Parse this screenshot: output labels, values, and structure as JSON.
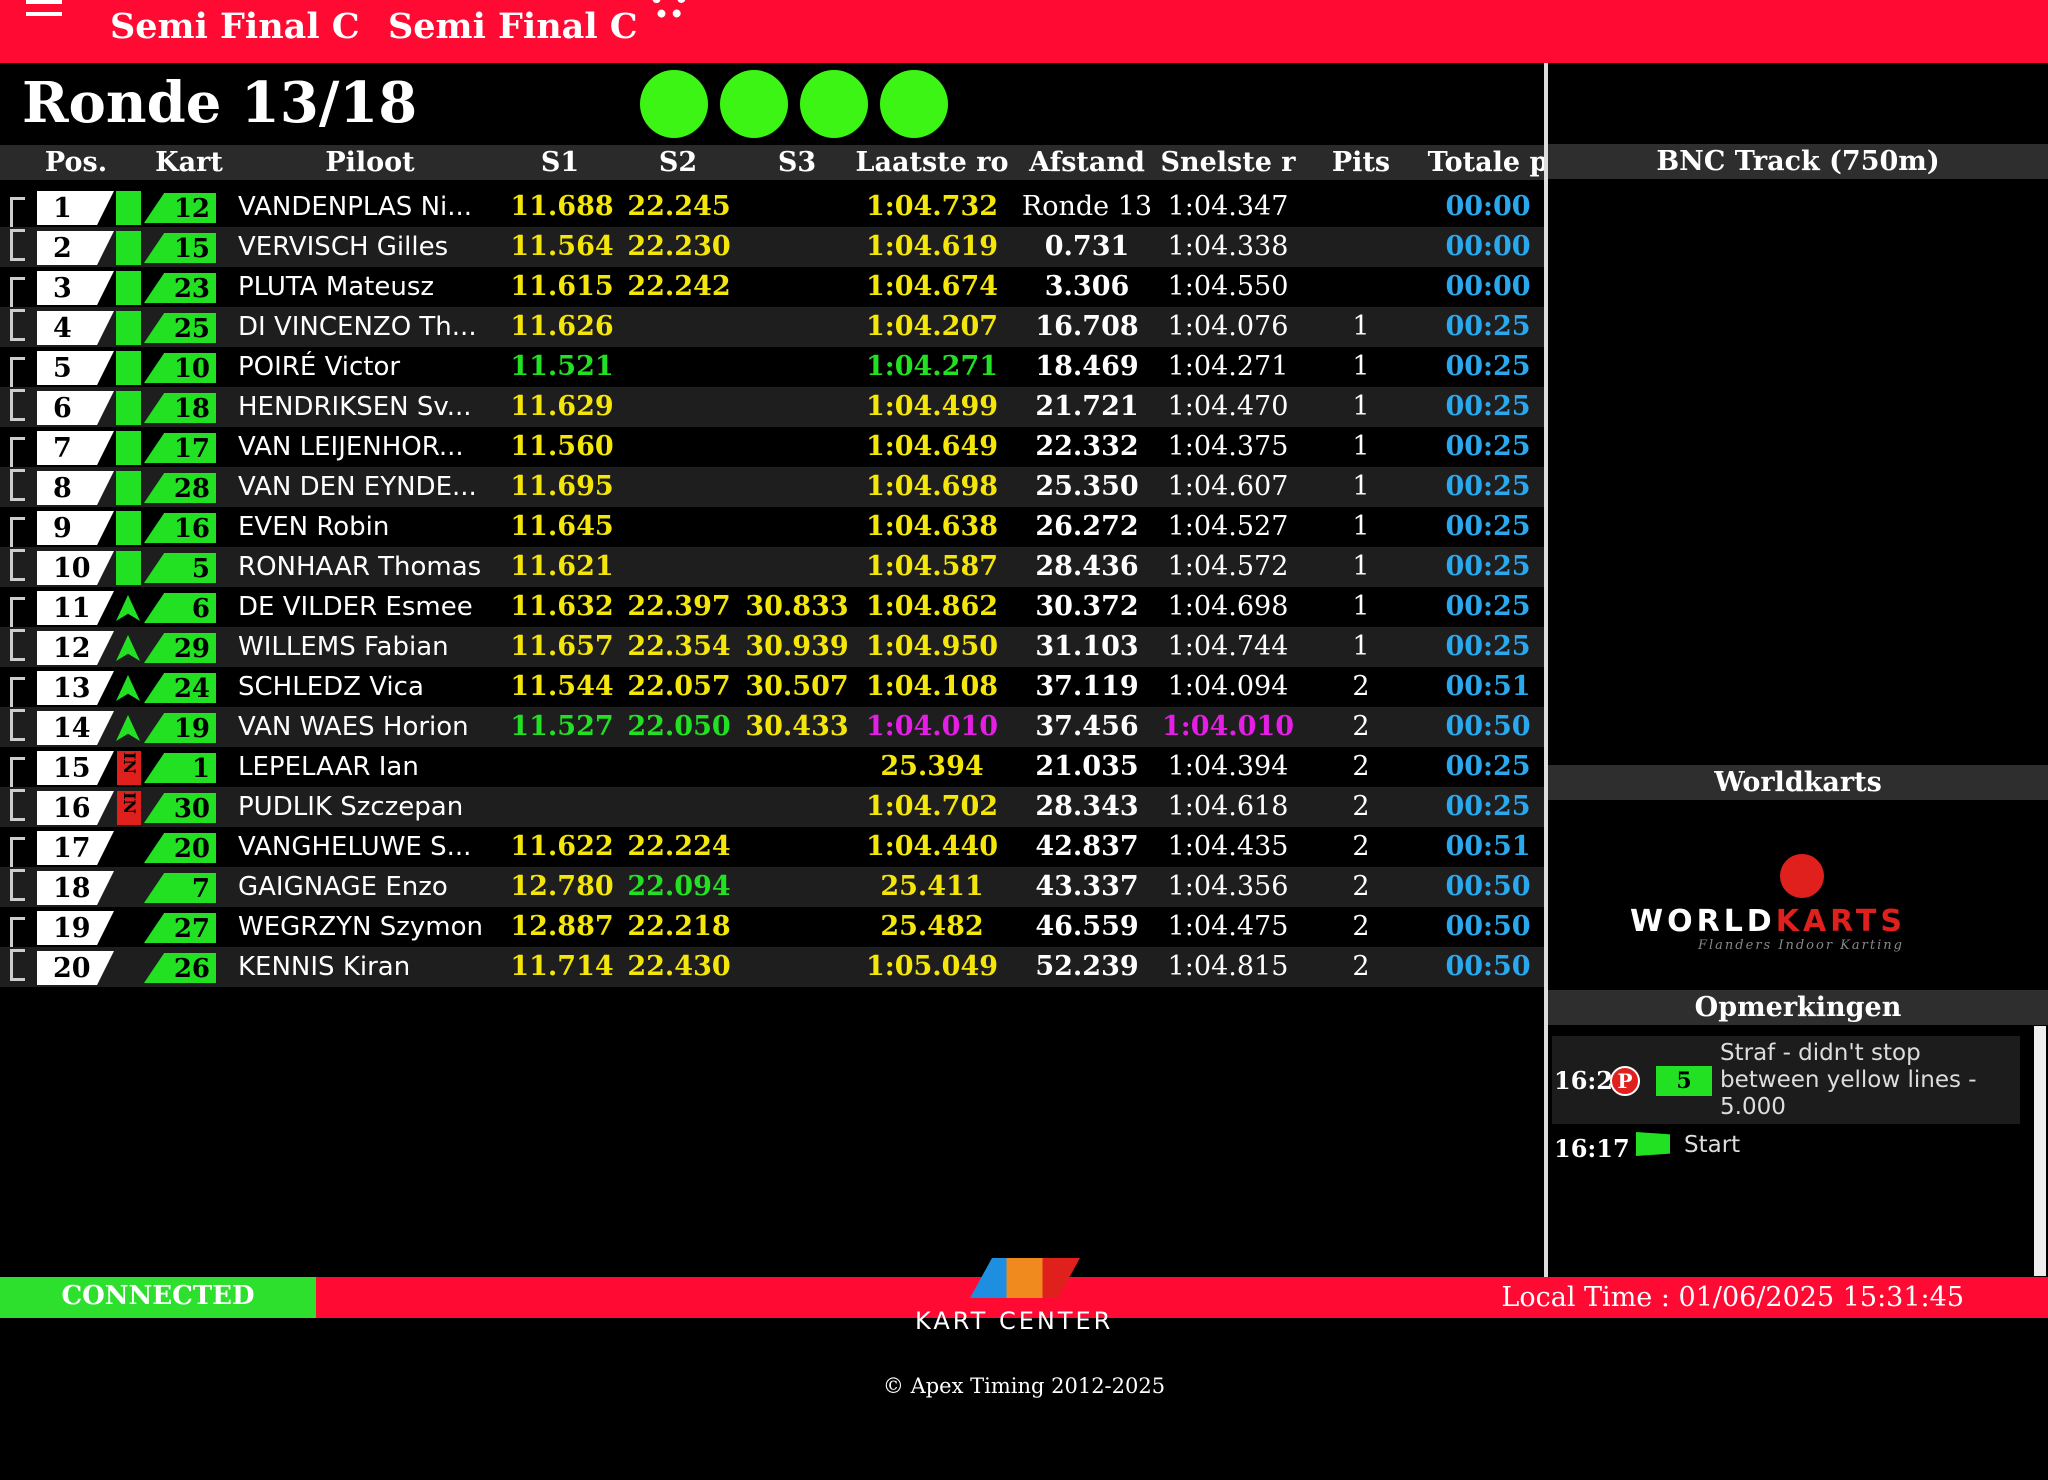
{
  "header": {
    "titles": [
      "Semi Final C",
      "Semi Final C"
    ]
  },
  "round": "Ronde 13/18",
  "table": {
    "columns": [
      "Pos.",
      "Kart",
      "Piloot",
      "S1",
      "S2",
      "S3",
      "Laatste ro",
      "Afstand",
      "Snelste r",
      "Pits",
      "Totale p"
    ],
    "rows": [
      {
        "pos": "1",
        "kart": "12",
        "name": "VANDENPLAS Ni...",
        "s1": "11.688",
        "s2": "22.245",
        "last": "1:04.732",
        "gap": "Ronde 13",
        "best": "1:04.347",
        "total": "00:00",
        "marker": "box"
      },
      {
        "pos": "2",
        "kart": "15",
        "name": "VERVISCH Gilles",
        "s1": "11.564",
        "s2": "22.230",
        "last": "1:04.619",
        "gap": "0.731",
        "best": "1:04.338",
        "total": "00:00",
        "marker": "box"
      },
      {
        "pos": "3",
        "kart": "23",
        "name": "PLUTA Mateusz",
        "s1": "11.615",
        "s2": "22.242",
        "last": "1:04.674",
        "gap": "3.306",
        "best": "1:04.550",
        "total": "00:00",
        "marker": "box"
      },
      {
        "pos": "4",
        "kart": "25",
        "name": "DI VINCENZO Th...",
        "s1": "11.626",
        "last": "1:04.207",
        "gap": "16.708",
        "best": "1:04.076",
        "pits": "1",
        "total": "00:25",
        "marker": "box"
      },
      {
        "pos": "5",
        "kart": "10",
        "name": "POIRÉ Victor",
        "s1": "11.521",
        "last": "1:04.271",
        "gap": "18.469",
        "best": "1:04.271",
        "pits": "1",
        "total": "00:25",
        "marker": "box",
        "green": [
          "s1",
          "last"
        ]
      },
      {
        "pos": "6",
        "kart": "18",
        "name": "HENDRIKSEN Sv...",
        "s1": "11.629",
        "last": "1:04.499",
        "gap": "21.721",
        "best": "1:04.470",
        "pits": "1",
        "total": "00:25",
        "marker": "box"
      },
      {
        "pos": "7",
        "kart": "17",
        "name": "VAN LEIJENHOR...",
        "s1": "11.560",
        "last": "1:04.649",
        "gap": "22.332",
        "best": "1:04.375",
        "pits": "1",
        "total": "00:25",
        "marker": "box"
      },
      {
        "pos": "8",
        "kart": "28",
        "name": "VAN DEN EYNDE...",
        "s1": "11.695",
        "last": "1:04.698",
        "gap": "25.350",
        "best": "1:04.607",
        "pits": "1",
        "total": "00:25",
        "marker": "box"
      },
      {
        "pos": "9",
        "kart": "16",
        "name": "EVEN Robin",
        "s1": "11.645",
        "last": "1:04.638",
        "gap": "26.272",
        "best": "1:04.527",
        "pits": "1",
        "total": "00:25",
        "marker": "box"
      },
      {
        "pos": "10",
        "kart": "5",
        "name": "RONHAAR Thomas",
        "s1": "11.621",
        "last": "1:04.587",
        "gap": "28.436",
        "best": "1:04.572",
        "pits": "1",
        "total": "00:25",
        "marker": "box"
      },
      {
        "pos": "11",
        "kart": "6",
        "name": "DE VILDER Esmee",
        "s1": "11.632",
        "s2": "22.397",
        "s3": "30.833",
        "last": "1:04.862",
        "gap": "30.372",
        "best": "1:04.698",
        "pits": "1",
        "total": "00:25",
        "marker": "arrow"
      },
      {
        "pos": "12",
        "kart": "29",
        "name": "WILLEMS Fabian",
        "s1": "11.657",
        "s2": "22.354",
        "s3": "30.939",
        "last": "1:04.950",
        "gap": "31.103",
        "best": "1:04.744",
        "pits": "1",
        "total": "00:25",
        "marker": "arrow"
      },
      {
        "pos": "13",
        "kart": "24",
        "name": "SCHLEDZ Vica",
        "s1": "11.544",
        "s2": "22.057",
        "s3": "30.507",
        "last": "1:04.108",
        "gap": "37.119",
        "best": "1:04.094",
        "pits": "2",
        "total": "00:51",
        "marker": "arrow"
      },
      {
        "pos": "14",
        "kart": "19",
        "name": "VAN WAES Horion",
        "s1": "11.527",
        "s2": "22.050",
        "s3": "30.433",
        "last": "1:04.010",
        "gap": "37.456",
        "best": "1:04.010",
        "pits": "2",
        "total": "00:50",
        "marker": "arrow",
        "green": [
          "s1",
          "s2"
        ],
        "purple": [
          "last",
          "best"
        ]
      },
      {
        "pos": "15",
        "kart": "1",
        "name": "LEPELAAR Ian",
        "last": "25.394",
        "gap": "21.035",
        "best": "1:04.394",
        "pits": "2",
        "total": "00:25",
        "in": "IN"
      },
      {
        "pos": "16",
        "kart": "30",
        "name": "PUDLIK Szczepan",
        "last": "1:04.702",
        "gap": "28.343",
        "best": "1:04.618",
        "pits": "2",
        "total": "00:25",
        "in": "IN"
      },
      {
        "pos": "17",
        "kart": "20",
        "name": "VANGHELUWE S...",
        "s1": "11.622",
        "s2": "22.224",
        "last": "1:04.440",
        "gap": "42.837",
        "best": "1:04.435",
        "pits": "2",
        "total": "00:51"
      },
      {
        "pos": "18",
        "kart": "7",
        "name": "GAIGNAGE Enzo",
        "s1": "12.780",
        "s2": "22.094",
        "last": "25.411",
        "gap": "43.337",
        "best": "1:04.356",
        "pits": "2",
        "total": "00:50",
        "green": [
          "s2"
        ]
      },
      {
        "pos": "19",
        "kart": "27",
        "name": "WEGRZYN Szymon",
        "s1": "12.887",
        "s2": "22.218",
        "last": "25.482",
        "gap": "46.559",
        "best": "1:04.475",
        "pits": "2",
        "total": "00:50"
      },
      {
        "pos": "20",
        "kart": "26",
        "name": "KENNIS Kiran",
        "s1": "11.714",
        "s2": "22.430",
        "last": "1:05.049",
        "gap": "52.239",
        "best": "1:04.815",
        "pits": "2",
        "total": "00:50"
      }
    ]
  },
  "track": "BNC Track (750m)",
  "sponsor": {
    "title": "Worldkarts",
    "logo": [
      "WORLD",
      "KARTS"
    ],
    "tagline": "Flanders Indoor Karting"
  },
  "remarks": {
    "title": "Opmerkingen",
    "items": [
      {
        "time": "16:2",
        "badge": "P",
        "kart": "5",
        "text": "Straf - didn't stop between yellow lines - 5.000"
      },
      {
        "time": "16:17",
        "text": "Start"
      }
    ]
  },
  "footer": {
    "status": "CONNECTED",
    "brand": "KART CENTER",
    "local_time": "Local Time : 01/06/2025 15:31:45",
    "copyright": "© Apex Timing 2012-2025"
  }
}
